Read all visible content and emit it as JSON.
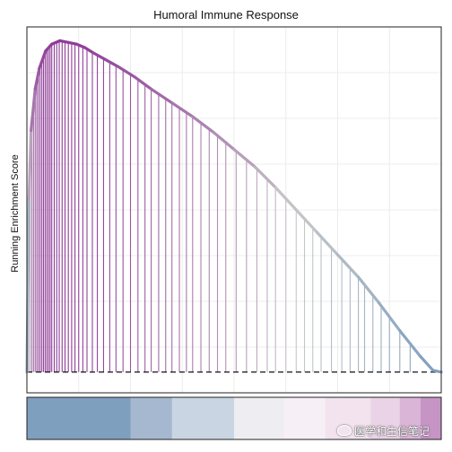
{
  "chart_data": {
    "type": "line",
    "title": "Humoral Immune Response",
    "ylabel": "Running Enrichment Score",
    "xlabel": "",
    "xlim": [
      0,
      1
    ],
    "ylim": [
      -0.06,
      1.0
    ],
    "grid": true,
    "baseline": 0,
    "gradient_colors": [
      "#7f9fbe",
      "#c9c9c9",
      "#8e3a98"
    ],
    "series": [
      {
        "values": [
          {
            "x": 0.0,
            "y": 0.0
          },
          {
            "x": 0.005,
            "y": 0.5
          },
          {
            "x": 0.01,
            "y": 0.7
          },
          {
            "x": 0.02,
            "y": 0.82
          },
          {
            "x": 0.03,
            "y": 0.88
          },
          {
            "x": 0.045,
            "y": 0.93
          },
          {
            "x": 0.06,
            "y": 0.95
          },
          {
            "x": 0.08,
            "y": 0.96
          },
          {
            "x": 0.1,
            "y": 0.955
          },
          {
            "x": 0.12,
            "y": 0.95
          },
          {
            "x": 0.14,
            "y": 0.94
          },
          {
            "x": 0.16,
            "y": 0.925
          },
          {
            "x": 0.19,
            "y": 0.905
          },
          {
            "x": 0.22,
            "y": 0.885
          },
          {
            "x": 0.26,
            "y": 0.855
          },
          {
            "x": 0.3,
            "y": 0.82
          },
          {
            "x": 0.35,
            "y": 0.78
          },
          {
            "x": 0.4,
            "y": 0.74
          },
          {
            "x": 0.45,
            "y": 0.695
          },
          {
            "x": 0.5,
            "y": 0.645
          },
          {
            "x": 0.55,
            "y": 0.595
          },
          {
            "x": 0.6,
            "y": 0.535
          },
          {
            "x": 0.65,
            "y": 0.47
          },
          {
            "x": 0.7,
            "y": 0.405
          },
          {
            "x": 0.75,
            "y": 0.34
          },
          {
            "x": 0.8,
            "y": 0.275
          },
          {
            "x": 0.85,
            "y": 0.2
          },
          {
            "x": 0.9,
            "y": 0.12
          },
          {
            "x": 0.95,
            "y": 0.045
          },
          {
            "x": 0.98,
            "y": 0.005
          },
          {
            "x": 1.0,
            "y": 0.0
          }
        ]
      }
    ],
    "hits": [
      0.004,
      0.008,
      0.012,
      0.016,
      0.02,
      0.024,
      0.028,
      0.032,
      0.036,
      0.04,
      0.044,
      0.048,
      0.052,
      0.056,
      0.06,
      0.066,
      0.072,
      0.078,
      0.085,
      0.092,
      0.1,
      0.108,
      0.116,
      0.125,
      0.135,
      0.145,
      0.158,
      0.17,
      0.185,
      0.2,
      0.215,
      0.232,
      0.25,
      0.268,
      0.285,
      0.3,
      0.318,
      0.335,
      0.35,
      0.368,
      0.385,
      0.4,
      0.42,
      0.44,
      0.46,
      0.48,
      0.505,
      0.53,
      0.555,
      0.58,
      0.6,
      0.625,
      0.65,
      0.67,
      0.69,
      0.71,
      0.735,
      0.76,
      0.78,
      0.8,
      0.815,
      0.835,
      0.855,
      0.875,
      0.9,
      0.925
    ],
    "rank_bar": {
      "segments": [
        {
          "from": 0.0,
          "to": 0.25,
          "color": "#7f9fbe"
        },
        {
          "from": 0.25,
          "to": 0.35,
          "color": "#a5b8cf"
        },
        {
          "from": 0.35,
          "to": 0.5,
          "color": "#c9d5e3"
        },
        {
          "from": 0.5,
          "to": 0.62,
          "color": "#ededf2"
        },
        {
          "from": 0.62,
          "to": 0.72,
          "color": "#f6eff5"
        },
        {
          "from": 0.72,
          "to": 0.83,
          "color": "#f2e3ef"
        },
        {
          "from": 0.83,
          "to": 0.9,
          "color": "#ead3e6"
        },
        {
          "from": 0.9,
          "to": 0.95,
          "color": "#dab5d8"
        },
        {
          "from": 0.95,
          "to": 1.0,
          "color": "#c794c6"
        }
      ]
    }
  },
  "watermark": {
    "text": "医学和生信笔记",
    "icon": "wechat-icon"
  }
}
